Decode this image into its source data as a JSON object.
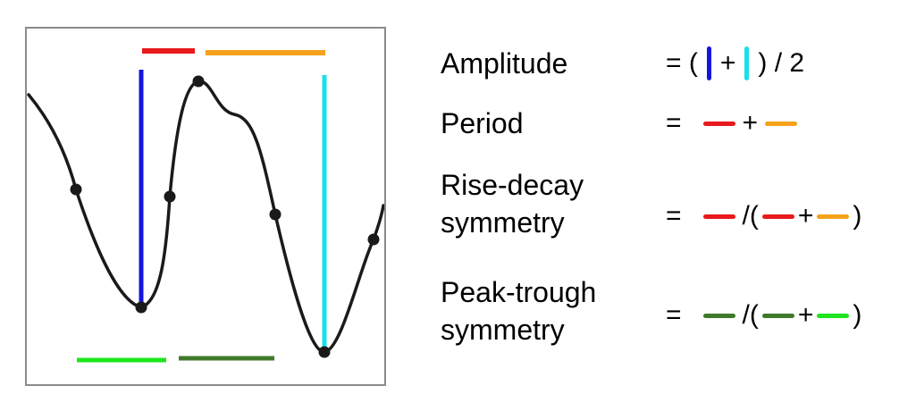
{
  "colors": {
    "trough_amplitude": "#1515e0",
    "peak_amplitude": "#19e0e8",
    "rise": "#e8191c",
    "decay": "#f5a21b",
    "peak_width": "#3f7a2b",
    "trough_width": "#1ee51e",
    "signal": "#1a1a1a"
  },
  "definitions": [
    {
      "label_lines": [
        "Amplitude"
      ],
      "formula": [
        {
          "t": "text",
          "v": "= ("
        },
        {
          "t": "vbar",
          "c": "trough_amplitude"
        },
        {
          "t": "text",
          "v": "+"
        },
        {
          "t": "vbar",
          "c": "peak_amplitude"
        },
        {
          "t": "text",
          "v": ") / 2"
        }
      ]
    },
    {
      "label_lines": [
        "Period"
      ],
      "formula": [
        {
          "t": "text",
          "v": "="
        },
        {
          "t": "space"
        },
        {
          "t": "hseg",
          "c": "rise"
        },
        {
          "t": "text",
          "v": "+"
        },
        {
          "t": "hseg",
          "c": "decay"
        }
      ]
    },
    {
      "label_lines": [
        "Rise-decay",
        "symmetry"
      ],
      "formula": [
        {
          "t": "text",
          "v": "="
        },
        {
          "t": "space"
        },
        {
          "t": "hseg",
          "c": "rise"
        },
        {
          "t": "text",
          "v": "/("
        },
        {
          "t": "hseg",
          "c": "rise",
          "tight": true
        },
        {
          "t": "text",
          "v": "+"
        },
        {
          "t": "hseg",
          "c": "decay",
          "tight": true
        },
        {
          "t": "text",
          "v": ")"
        }
      ]
    },
    {
      "label_lines": [
        "Peak-trough",
        "symmetry"
      ],
      "formula": [
        {
          "t": "text",
          "v": "="
        },
        {
          "t": "space"
        },
        {
          "t": "hseg",
          "c": "peak_width"
        },
        {
          "t": "text",
          "v": "/("
        },
        {
          "t": "hseg",
          "c": "peak_width",
          "tight": true
        },
        {
          "t": "text",
          "v": "+"
        },
        {
          "t": "hseg",
          "c": "trough_width",
          "tight": true
        },
        {
          "t": "text",
          "v": ")"
        }
      ]
    }
  ]
}
